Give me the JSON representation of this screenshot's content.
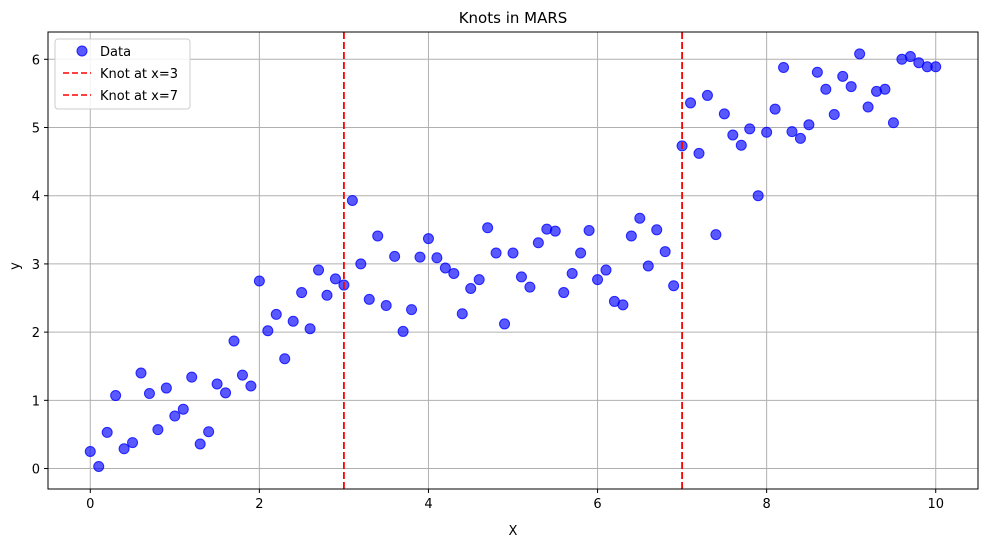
{
  "chart_data": {
    "type": "scatter",
    "title": "Knots in MARS",
    "xlabel": "X",
    "ylabel": "y",
    "xlim": [
      -0.5,
      10.5
    ],
    "ylim": [
      -0.3,
      6.4
    ],
    "xticks": [
      0,
      2,
      4,
      6,
      8,
      10
    ],
    "yticks": [
      0,
      1,
      2,
      3,
      4,
      5,
      6
    ],
    "grid": true,
    "legend_position": "top-left",
    "colors": {
      "points": "#0000ff",
      "knots": "#ff0000",
      "grid": "#b0b0b0"
    },
    "series": [
      {
        "name": "Data",
        "x": [
          0.0,
          0.1,
          0.2,
          0.3,
          0.4,
          0.5,
          0.6,
          0.7,
          0.8,
          0.9,
          1.0,
          1.1,
          1.2,
          1.3,
          1.4,
          1.5,
          1.6,
          1.7,
          1.8,
          1.9,
          2.0,
          2.1,
          2.2,
          2.3,
          2.4,
          2.5,
          2.6,
          2.7,
          2.8,
          2.9,
          3.0,
          3.1,
          3.2,
          3.3,
          3.4,
          3.5,
          3.6,
          3.7,
          3.8,
          3.9,
          4.0,
          4.1,
          4.2,
          4.3,
          4.4,
          4.5,
          4.6,
          4.7,
          4.8,
          4.9,
          5.0,
          5.1,
          5.2,
          5.3,
          5.4,
          5.5,
          5.6,
          5.7,
          5.8,
          5.9,
          6.0,
          6.1,
          6.2,
          6.3,
          6.4,
          6.5,
          6.6,
          6.7,
          6.8,
          6.9,
          7.0,
          7.1,
          7.2,
          7.3,
          7.4,
          7.5,
          7.6,
          7.7,
          7.8,
          7.9,
          8.0,
          8.1,
          8.2,
          8.3,
          8.4,
          8.5,
          8.6,
          8.7,
          8.8,
          8.9,
          9.0,
          9.1,
          9.2,
          9.3,
          9.4,
          9.5,
          9.6,
          9.7,
          9.8,
          9.9,
          10.0
        ],
        "y": [
          0.25,
          0.03,
          0.53,
          1.07,
          0.29,
          0.38,
          1.4,
          1.1,
          0.57,
          1.18,
          0.77,
          0.87,
          1.34,
          0.36,
          0.54,
          1.24,
          1.11,
          1.87,
          1.37,
          1.21,
          2.75,
          2.02,
          2.26,
          1.61,
          2.16,
          2.58,
          2.05,
          2.91,
          2.54,
          2.78,
          2.69,
          3.93,
          3.0,
          2.48,
          3.41,
          2.39,
          3.11,
          2.01,
          2.33,
          3.1,
          3.37,
          3.09,
          2.94,
          2.86,
          2.27,
          2.64,
          2.77,
          3.53,
          3.16,
          2.12,
          3.16,
          2.81,
          2.66,
          3.31,
          3.51,
          3.48,
          2.58,
          2.86,
          3.16,
          3.49,
          2.77,
          2.91,
          2.45,
          2.4,
          3.41,
          3.67,
          2.97,
          3.5,
          3.18,
          2.68,
          4.73,
          5.36,
          4.62,
          5.47,
          3.43,
          5.2,
          4.89,
          4.74,
          4.98,
          4.0,
          4.93,
          5.27,
          5.88,
          4.94,
          4.84,
          5.04,
          5.81,
          5.56,
          5.19,
          5.75,
          5.6,
          6.08,
          5.3,
          5.53,
          5.56,
          5.07,
          6.0,
          6.04,
          5.95,
          5.89,
          5.89
        ]
      }
    ],
    "knots": [
      {
        "name": "Knot at x=3",
        "x": 3
      },
      {
        "name": "Knot at x=7",
        "x": 7
      }
    ]
  }
}
